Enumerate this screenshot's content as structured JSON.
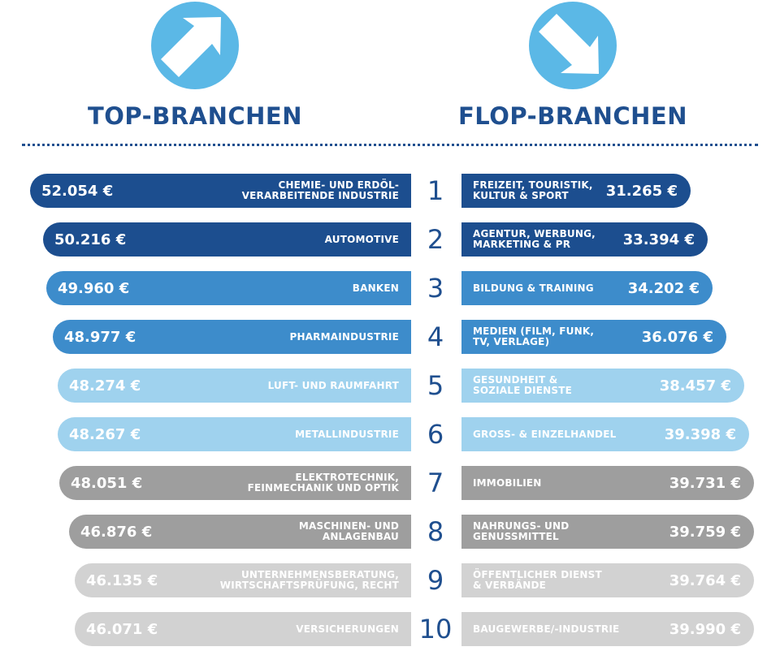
{
  "header": {
    "top_title": "TOP-BRANCHEN",
    "flop_title": "FLOP-BRANCHEN"
  },
  "colors": {
    "title": "#1f4f8f",
    "arrow_circle": "#5bb8e6",
    "tier_dark": "#1c4e8f",
    "tier_mid": "#3d8ccb",
    "tier_light": "#9fd2ee",
    "tier_gray": "#9e9e9e",
    "tier_lightgray": "#d2d2d2"
  },
  "chart_data": {
    "type": "bar",
    "categories": [
      "1",
      "2",
      "3",
      "4",
      "5",
      "6",
      "7",
      "8",
      "9",
      "10"
    ],
    "top": [
      {
        "rank": "1",
        "label": "CHEMIE- UND ERDÖL-\nVERARBEITENDE INDUSTRIE",
        "value_text": "52.054 €",
        "value": 52054,
        "tier": "dark"
      },
      {
        "rank": "2",
        "label": "AUTOMOTIVE",
        "value_text": "50.216 €",
        "value": 50216,
        "tier": "dark"
      },
      {
        "rank": "3",
        "label": "BANKEN",
        "value_text": "49.960 €",
        "value": 49960,
        "tier": "mid"
      },
      {
        "rank": "4",
        "label": "PHARMAINDUSTRIE",
        "value_text": "48.977 €",
        "value": 48977,
        "tier": "mid"
      },
      {
        "rank": "5",
        "label": "LUFT- UND RAUMFAHRT",
        "value_text": "48.274 €",
        "value": 48274,
        "tier": "light"
      },
      {
        "rank": "6",
        "label": "METALLINDUSTRIE",
        "value_text": "48.267 €",
        "value": 48267,
        "tier": "light"
      },
      {
        "rank": "7",
        "label": "ELEKTROTECHNIK,\nFEINMECHANIK UND OPTIK",
        "value_text": "48.051 €",
        "value": 48051,
        "tier": "gray"
      },
      {
        "rank": "8",
        "label": "MASCHINEN- UND\nANLAGENBAU",
        "value_text": "46.876 €",
        "value": 46876,
        "tier": "gray"
      },
      {
        "rank": "9",
        "label": "UNTERNEHMENSBERATUNG,\nWIRTSCHAFTSPRÜFUNG, RECHT",
        "value_text": "46.135 €",
        "value": 46135,
        "tier": "lightgray"
      },
      {
        "rank": "10",
        "label": "VERSICHERUNGEN",
        "value_text": "46.071 €",
        "value": 46071,
        "tier": "lightgray"
      }
    ],
    "flop": [
      {
        "rank": "1",
        "label": "FREIZEIT, TOURISTIK,\nKULTUR & SPORT",
        "value_text": "31.265 €",
        "value": 31265,
        "tier": "dark"
      },
      {
        "rank": "2",
        "label": "AGENTUR, WERBUNG,\nMARKETING & PR",
        "value_text": "33.394 €",
        "value": 33394,
        "tier": "dark"
      },
      {
        "rank": "3",
        "label": "BILDUNG & TRAINING",
        "value_text": "34.202 €",
        "value": 34202,
        "tier": "mid"
      },
      {
        "rank": "4",
        "label": "MEDIEN (FILM, FUNK,\nTV, VERLAGE)",
        "value_text": "36.076 €",
        "value": 36076,
        "tier": "mid"
      },
      {
        "rank": "5",
        "label": "GESUNDHEIT &\nSOZIALE DIENSTE",
        "value_text": "38.457 €",
        "value": 38457,
        "tier": "light"
      },
      {
        "rank": "6",
        "label": "GROSS- & EINZELHANDEL",
        "value_text": "39.398 €",
        "value": 39398,
        "tier": "light"
      },
      {
        "rank": "7",
        "label": "IMMOBILIEN",
        "value_text": "39.731 €",
        "value": 39731,
        "tier": "gray"
      },
      {
        "rank": "8",
        "label": "NAHRUNGS- UND\nGENUSSMITTEL",
        "value_text": "39.759 €",
        "value": 39759,
        "tier": "gray"
      },
      {
        "rank": "9",
        "label": "ÖFFENTLICHER DIENST\n& VERBÄNDE",
        "value_text": "39.764 €",
        "value": 39764,
        "tier": "lightgray"
      },
      {
        "rank": "10",
        "label": "BAUGEWERBE/-INDUSTRIE",
        "value_text": "39.990 €",
        "value": 39990,
        "tier": "lightgray"
      }
    ]
  }
}
